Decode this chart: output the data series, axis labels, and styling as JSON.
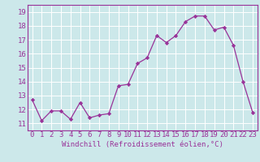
{
  "x": [
    0,
    1,
    2,
    3,
    4,
    5,
    6,
    7,
    8,
    9,
    10,
    11,
    12,
    13,
    14,
    15,
    16,
    17,
    18,
    19,
    20,
    21,
    22,
    23
  ],
  "y": [
    12.7,
    11.2,
    11.9,
    11.9,
    11.3,
    12.5,
    11.4,
    11.6,
    11.7,
    13.7,
    13.8,
    15.3,
    15.7,
    17.3,
    16.8,
    17.3,
    18.3,
    18.7,
    18.7,
    17.7,
    17.9,
    16.6,
    14.0,
    11.8
  ],
  "line_color": "#993399",
  "marker": "D",
  "marker_size": 2.2,
  "background_color": "#cce8ea",
  "grid_color": "#ffffff",
  "xlabel": "Windchill (Refroidissement éolien,°C)",
  "xlabel_fontsize": 6.5,
  "tick_fontsize": 6.5,
  "ylim": [
    10.5,
    19.5
  ],
  "yticks": [
    11,
    12,
    13,
    14,
    15,
    16,
    17,
    18,
    19
  ],
  "xticks": [
    0,
    1,
    2,
    3,
    4,
    5,
    6,
    7,
    8,
    9,
    10,
    11,
    12,
    13,
    14,
    15,
    16,
    17,
    18,
    19,
    20,
    21,
    22,
    23
  ],
  "tick_color": "#993399",
  "label_color": "#993399",
  "spine_color": "#993399"
}
